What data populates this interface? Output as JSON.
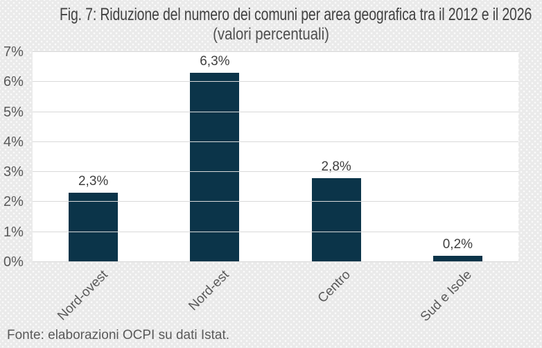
{
  "figure": {
    "title": "Fig. 7: Riduzione del numero dei comuni per area geografica tra il 2012 e il 2026",
    "subtitle": "(valori percentuali)",
    "source": "Fonte: elaborazioni OCPI su dati Istat."
  },
  "chart_data": {
    "type": "bar",
    "title": "Fig. 7: Riduzione del numero dei comuni per area geografica tra il 2012 e il 2026",
    "subtitle": "(valori percentuali)",
    "categories": [
      "Nord-ovest",
      "Nord-est",
      "Centro",
      "Sud e Isole"
    ],
    "values": [
      2.3,
      6.3,
      2.8,
      0.2
    ],
    "value_labels": [
      "2,3%",
      "6,3%",
      "2,8%",
      "0,2%"
    ],
    "xlabel": "",
    "ylabel": "",
    "ylim": [
      0,
      7
    ],
    "y_tick_step": 1,
    "y_tick_labels": [
      "0%",
      "1%",
      "2%",
      "3%",
      "4%",
      "5%",
      "6%",
      "7%"
    ],
    "grid": true,
    "legend": false,
    "source": "Fonte: elaborazioni OCPI su dati Istat."
  },
  "colors": {
    "background": "#eaeaea",
    "plot_background": "#ffffff",
    "gridline": "#d9d9d9",
    "bar": "#0b3449",
    "title_text": "#424242",
    "axis_text": "#595959",
    "value_label_text": "#3f3f3f"
  }
}
